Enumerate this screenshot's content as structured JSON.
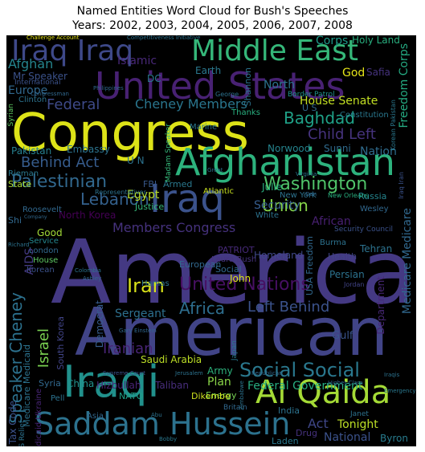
{
  "title_line1": "Named Entities Word Cloud for Bush's Speeches",
  "title_line2": "Years: 2002, 2003, 2004, 2005, 2006, 2007, 2008",
  "words": [
    {
      "text": "America",
      "color": "#443983"
    },
    {
      "text": "American",
      "color": "#414487"
    },
    {
      "text": "Congress",
      "color": "#dde318"
    },
    {
      "text": "United States",
      "color": "#482173"
    },
    {
      "text": "Afghanistan",
      "color": "#2db27d"
    },
    {
      "text": "Saddam Hussein",
      "color": "#2c728e"
    },
    {
      "text": "Middle East",
      "color": "#35b779"
    },
    {
      "text": "Al Qaida",
      "color": "#a5db36"
    },
    {
      "text": "Iraqi",
      "color": "#21918c"
    },
    {
      "text": "Iraq",
      "color": "#3b528b"
    },
    {
      "text": "Iraq Iraq",
      "color": "#3e4989"
    },
    {
      "text": "Iran",
      "color": "#d8e219"
    },
    {
      "text": "United Nations",
      "color": "#471063"
    },
    {
      "text": "Social Social",
      "color": "#2a788e"
    },
    {
      "text": "Washington",
      "color": "#50c46a"
    },
    {
      "text": "Palestinian",
      "color": "#31688e"
    },
    {
      "text": "Baghdad",
      "color": "#1fa187"
    },
    {
      "text": "Child Left",
      "color": "#46337e"
    },
    {
      "text": "Federal",
      "color": "#3e4a89"
    },
    {
      "text": "Cheney Members",
      "color": "#2a768e"
    },
    {
      "text": "Africa",
      "color": "#2e6e8e"
    },
    {
      "text": "Left Behind",
      "color": "#3b528b"
    },
    {
      "text": "Union",
      "color": "#86d549"
    },
    {
      "text": "Lebanon",
      "color": "#34618d"
    },
    {
      "text": "Behind Act",
      "color": "#365c8d"
    },
    {
      "text": "Iranian",
      "color": "#482475"
    },
    {
      "text": "Federal Government",
      "color": "#27ad81"
    },
    {
      "text": "Speaker Cheney",
      "color": "#2c718e"
    },
    {
      "text": "Members Congress",
      "color": "#46327e"
    },
    {
      "text": "House Senate",
      "color": "#c2df23"
    },
    {
      "text": "Islamic",
      "color": "#482878"
    },
    {
      "text": "Afghan",
      "color": "#25858e"
    },
    {
      "text": "Corps",
      "color": "#1e9b8a"
    },
    {
      "text": "Holy Land",
      "color": "#29af7f"
    },
    {
      "text": "God",
      "color": "#e5e419"
    },
    {
      "text": "Safia",
      "color": "#46337e"
    },
    {
      "text": "Earth",
      "color": "#2a788e"
    },
    {
      "text": "Mr Speaker",
      "color": "#3b528b"
    },
    {
      "text": "Europe",
      "color": "#31688e"
    },
    {
      "text": "Freedom Corps",
      "color": "#25ab82"
    },
    {
      "text": "Sergeant",
      "color": "#2d708e"
    },
    {
      "text": "Israel",
      "color": "#7ad151"
    },
    {
      "text": "Act",
      "color": "#3f4788"
    },
    {
      "text": "Tonight",
      "color": "#bddf26"
    },
    {
      "text": "Security",
      "color": "#365d8d"
    },
    {
      "text": "African",
      "color": "#482071"
    },
    {
      "text": "Homeland",
      "color": "#3f4889"
    },
    {
      "text": "Nation",
      "color": "#2f6c8e"
    },
    {
      "text": "Norwood",
      "color": "#25848e"
    },
    {
      "text": "Sunni",
      "color": "#2f6b8e"
    },
    {
      "text": "Embassy",
      "color": "#2c738e"
    },
    {
      "text": "Pakistan",
      "color": "#277f8e"
    },
    {
      "text": "Egypt",
      "color": "#bade28"
    },
    {
      "text": "Justice",
      "color": "#35b779"
    },
    {
      "text": "North Korea",
      "color": "#440154"
    },
    {
      "text": "Julie",
      "color": "#29af7f"
    },
    {
      "text": "Russia",
      "color": "#25858e"
    },
    {
      "text": "Good",
      "color": "#a2da37"
    },
    {
      "text": "Service",
      "color": "#24868e"
    },
    {
      "text": "London",
      "color": "#31688e"
    },
    {
      "text": "House",
      "color": "#5ec962"
    },
    {
      "text": "Korean",
      "color": "#3b528b"
    },
    {
      "text": "State",
      "color": "#a8db34"
    },
    {
      "text": "Rieman",
      "color": "#2a788e"
    },
    {
      "text": "Roosevelt",
      "color": "#31688e"
    },
    {
      "text": "AIDS",
      "color": "#443a83"
    },
    {
      "text": "Hamas",
      "color": "#2c728e"
    },
    {
      "text": "European",
      "color": "#31688e"
    },
    {
      "text": "John",
      "color": "#dae319"
    },
    {
      "text": "Democrat",
      "color": "#365c8d"
    },
    {
      "text": "South Korea",
      "color": "#414487"
    },
    {
      "text": "Army",
      "color": "#2db27d"
    },
    {
      "text": "Plan",
      "color": "#89d548"
    },
    {
      "text": "Energy",
      "color": "#75d054"
    },
    {
      "text": "Saudi Arabia",
      "color": "#bddf26"
    },
    {
      "text": "Taliban",
      "color": "#472d7b"
    },
    {
      "text": "Hizbullah",
      "color": "#482475"
    },
    {
      "text": "China",
      "color": "#21918c"
    },
    {
      "text": "NATO",
      "color": "#1fa187"
    },
    {
      "text": "Dikembe",
      "color": "#cde11d"
    },
    {
      "text": "India",
      "color": "#2c728e"
    },
    {
      "text": "Drug",
      "color": "#46327e"
    },
    {
      "text": "Laden",
      "color": "#2a788e"
    },
    {
      "text": "National",
      "color": "#3b528b"
    },
    {
      "text": "Byron",
      "color": "#287c8e"
    },
    {
      "text": "Gulf",
      "color": "#3a548c"
    },
    {
      "text": "Persian",
      "color": "#2c728e"
    },
    {
      "text": "Medicare Medicare",
      "color": "#31688e"
    },
    {
      "text": "Medicare Medicaid",
      "color": "#2c728e"
    },
    {
      "text": "Medicaid Ukraine",
      "color": "#482576"
    },
    {
      "text": "Tax Code",
      "color": "#3b528b"
    },
    {
      "text": "AIDS Relief",
      "color": "#2c728e"
    },
    {
      "text": "Syria",
      "color": "#31688e"
    },
    {
      "text": "Tehran",
      "color": "#2c728e"
    },
    {
      "text": "Health",
      "color": "#414487"
    },
    {
      "text": "Burma",
      "color": "#2c728e"
    },
    {
      "text": "PATRIOT",
      "color": "#472a7a"
    },
    {
      "text": "Laura Bush",
      "color": "#46337e"
    },
    {
      "text": "Social",
      "color": "#31688e"
    },
    {
      "text": "Armed",
      "color": "#2a788e"
    },
    {
      "text": "FBI",
      "color": "#38598c"
    },
    {
      "text": "Atlantic",
      "color": "#c8e020"
    },
    {
      "text": "Madam Speaker",
      "color": "#35b779"
    },
    {
      "text": "U N",
      "color": "#2c728e"
    },
    {
      "text": "Marine",
      "color": "#2a788e"
    },
    {
      "text": "Thanks",
      "color": "#29af7f"
    },
    {
      "text": "New York",
      "color": "#2c728e"
    },
    {
      "text": "White",
      "color": "#2c728e"
    },
    {
      "text": "Wesley",
      "color": "#31688e"
    },
    {
      "text": "North",
      "color": "#2c728e"
    },
    {
      "text": "DC",
      "color": "#2a788e"
    },
    {
      "text": "Shannon",
      "color": "#2c728e"
    },
    {
      "text": "Constitution",
      "color": "#2a788e"
    },
    {
      "text": "Clinton",
      "color": "#2c728e"
    },
    {
      "text": "International",
      "color": "#3b528b"
    },
    {
      "text": "Korean Pakistan",
      "color": "#2a788e"
    },
    {
      "text": "Iraq Iran",
      "color": "#3b528b"
    },
    {
      "text": "USA Freedom",
      "color": "#31688e"
    },
    {
      "text": "Department",
      "color": "#482878"
    },
    {
      "text": "Shi",
      "color": "#31688e"
    },
    {
      "text": "Representatives",
      "color": "#2c728e"
    },
    {
      "text": "Border Patrol",
      "color": "#21918c"
    },
    {
      "text": "George",
      "color": "#2c728e"
    },
    {
      "text": "Syrian",
      "color": "#5ec962"
    },
    {
      "text": "New Orleans",
      "color": "#29af7f"
    },
    {
      "text": "Security Council",
      "color": "#3b528b"
    },
    {
      "text": "Challenge Account",
      "color": "#e5e419"
    },
    {
      "text": "Competitiveness Initiative",
      "color": "#2c728e"
    },
    {
      "text": "Philippines",
      "color": "#31688e"
    },
    {
      "text": "Virginia",
      "color": "#2a788e"
    },
    {
      "text": "Jordan",
      "color": "#414487"
    },
    {
      "text": "Janet",
      "color": "#2c728e"
    },
    {
      "text": "Supreme Court",
      "color": "#3b528b"
    },
    {
      "text": "Republican",
      "color": "#31688e"
    },
    {
      "text": "Jerusalem",
      "color": "#2c728e"
    },
    {
      "text": "Higher Clara",
      "color": "#31688e"
    },
    {
      "text": "Pell",
      "color": "#2c728e"
    },
    {
      "text": "Britain",
      "color": "#31688e"
    },
    {
      "text": "Emergency",
      "color": "#2a788e"
    },
    {
      "text": "Iraqis",
      "color": "#2c728e"
    },
    {
      "text": "Congressman",
      "color": "#31688e"
    },
    {
      "text": "Colombia",
      "color": "#2c728e"
    },
    {
      "text": "Ashley",
      "color": "#31688e"
    },
    {
      "text": "Japan",
      "color": "#2a788e"
    },
    {
      "text": "Gary Einstein",
      "color": "#31688e"
    },
    {
      "text": "Zimbabwe",
      "color": "#2c728e"
    },
    {
      "text": "Company",
      "color": "#31688e"
    },
    {
      "text": "Richard",
      "color": "#2c728e"
    },
    {
      "text": "Dan",
      "color": "#31688e"
    },
    {
      "text": "Great",
      "color": "#2c728e"
    },
    {
      "text": "Asia",
      "color": "#31688e"
    },
    {
      "text": "Abu",
      "color": "#2c728e"
    },
    {
      "text": "Bobby",
      "color": "#2a788e"
    },
    {
      "text": "U S",
      "color": "#31688e"
    }
  ]
}
